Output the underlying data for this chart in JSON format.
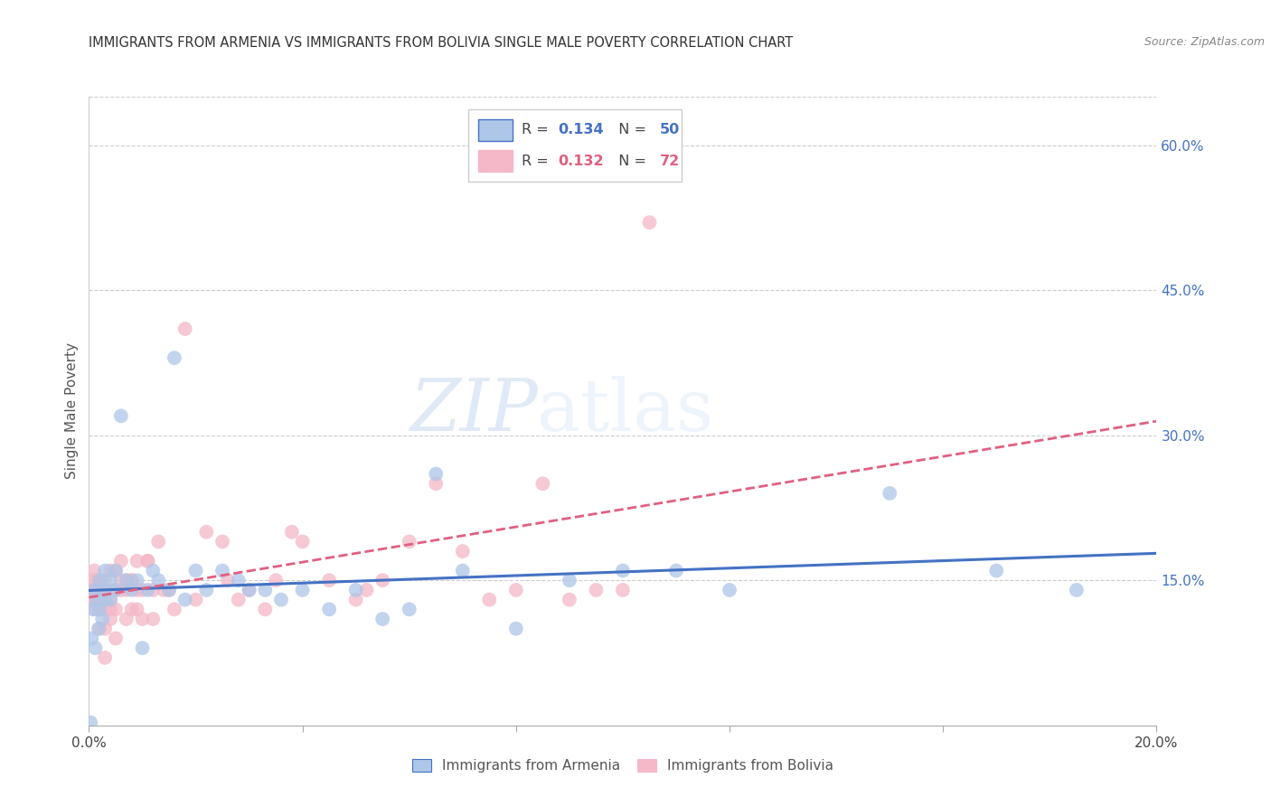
{
  "title": "IMMIGRANTS FROM ARMENIA VS IMMIGRANTS FROM BOLIVIA SINGLE MALE POVERTY CORRELATION CHART",
  "source": "Source: ZipAtlas.com",
  "ylabel": "Single Male Poverty",
  "xlim": [
    0.0,
    0.2
  ],
  "ylim": [
    0.0,
    0.65
  ],
  "right_y_ticks": [
    0.15,
    0.3,
    0.45,
    0.6
  ],
  "right_y_tick_labels": [
    "15.0%",
    "30.0%",
    "45.0%",
    "60.0%"
  ],
  "legend_armenia_R": "0.134",
  "legend_armenia_N": "50",
  "legend_bolivia_R": "0.132",
  "legend_bolivia_N": "72",
  "color_armenia": "#aec6e8",
  "color_bolivia": "#f4b8c8",
  "color_armenia_line": "#4472c4",
  "color_bolivia_line": "#e06080",
  "background_color": "#ffffff",
  "armenia_x": [
    0.0003,
    0.0005,
    0.0008,
    0.001,
    0.0012,
    0.0015,
    0.0018,
    0.002,
    0.002,
    0.0025,
    0.003,
    0.003,
    0.003,
    0.004,
    0.004,
    0.005,
    0.005,
    0.006,
    0.007,
    0.008,
    0.009,
    0.01,
    0.011,
    0.012,
    0.013,
    0.015,
    0.016,
    0.018,
    0.02,
    0.022,
    0.025,
    0.028,
    0.03,
    0.033,
    0.036,
    0.04,
    0.045,
    0.05,
    0.055,
    0.06,
    0.065,
    0.07,
    0.08,
    0.09,
    0.1,
    0.11,
    0.12,
    0.15,
    0.17,
    0.185
  ],
  "armenia_y": [
    0.003,
    0.09,
    0.12,
    0.14,
    0.08,
    0.13,
    0.1,
    0.12,
    0.15,
    0.11,
    0.14,
    0.13,
    0.16,
    0.15,
    0.13,
    0.14,
    0.16,
    0.32,
    0.15,
    0.14,
    0.15,
    0.08,
    0.14,
    0.16,
    0.15,
    0.14,
    0.38,
    0.13,
    0.16,
    0.14,
    0.16,
    0.15,
    0.14,
    0.14,
    0.13,
    0.14,
    0.12,
    0.14,
    0.11,
    0.12,
    0.26,
    0.16,
    0.1,
    0.15,
    0.16,
    0.16,
    0.14,
    0.24,
    0.16,
    0.14
  ],
  "bolivia_x": [
    0.0003,
    0.0005,
    0.0008,
    0.001,
    0.001,
    0.001,
    0.0012,
    0.0015,
    0.002,
    0.002,
    0.002,
    0.002,
    0.003,
    0.003,
    0.003,
    0.003,
    0.003,
    0.004,
    0.004,
    0.004,
    0.004,
    0.005,
    0.005,
    0.005,
    0.005,
    0.006,
    0.006,
    0.006,
    0.007,
    0.007,
    0.007,
    0.008,
    0.008,
    0.008,
    0.009,
    0.009,
    0.009,
    0.01,
    0.01,
    0.011,
    0.011,
    0.012,
    0.012,
    0.013,
    0.014,
    0.015,
    0.016,
    0.018,
    0.02,
    0.022,
    0.025,
    0.026,
    0.028,
    0.03,
    0.033,
    0.035,
    0.038,
    0.04,
    0.045,
    0.05,
    0.052,
    0.055,
    0.06,
    0.065,
    0.07,
    0.075,
    0.08,
    0.085,
    0.09,
    0.095,
    0.1,
    0.105
  ],
  "bolivia_y": [
    0.14,
    0.13,
    0.15,
    0.13,
    0.14,
    0.16,
    0.12,
    0.15,
    0.1,
    0.12,
    0.13,
    0.14,
    0.07,
    0.1,
    0.12,
    0.14,
    0.15,
    0.11,
    0.12,
    0.13,
    0.16,
    0.09,
    0.12,
    0.14,
    0.16,
    0.14,
    0.15,
    0.17,
    0.11,
    0.14,
    0.15,
    0.12,
    0.15,
    0.15,
    0.12,
    0.14,
    0.17,
    0.11,
    0.14,
    0.17,
    0.17,
    0.11,
    0.14,
    0.19,
    0.14,
    0.14,
    0.12,
    0.41,
    0.13,
    0.2,
    0.19,
    0.15,
    0.13,
    0.14,
    0.12,
    0.15,
    0.2,
    0.19,
    0.15,
    0.13,
    0.14,
    0.15,
    0.19,
    0.25,
    0.18,
    0.13,
    0.14,
    0.25,
    0.13,
    0.14,
    0.14,
    0.52
  ]
}
